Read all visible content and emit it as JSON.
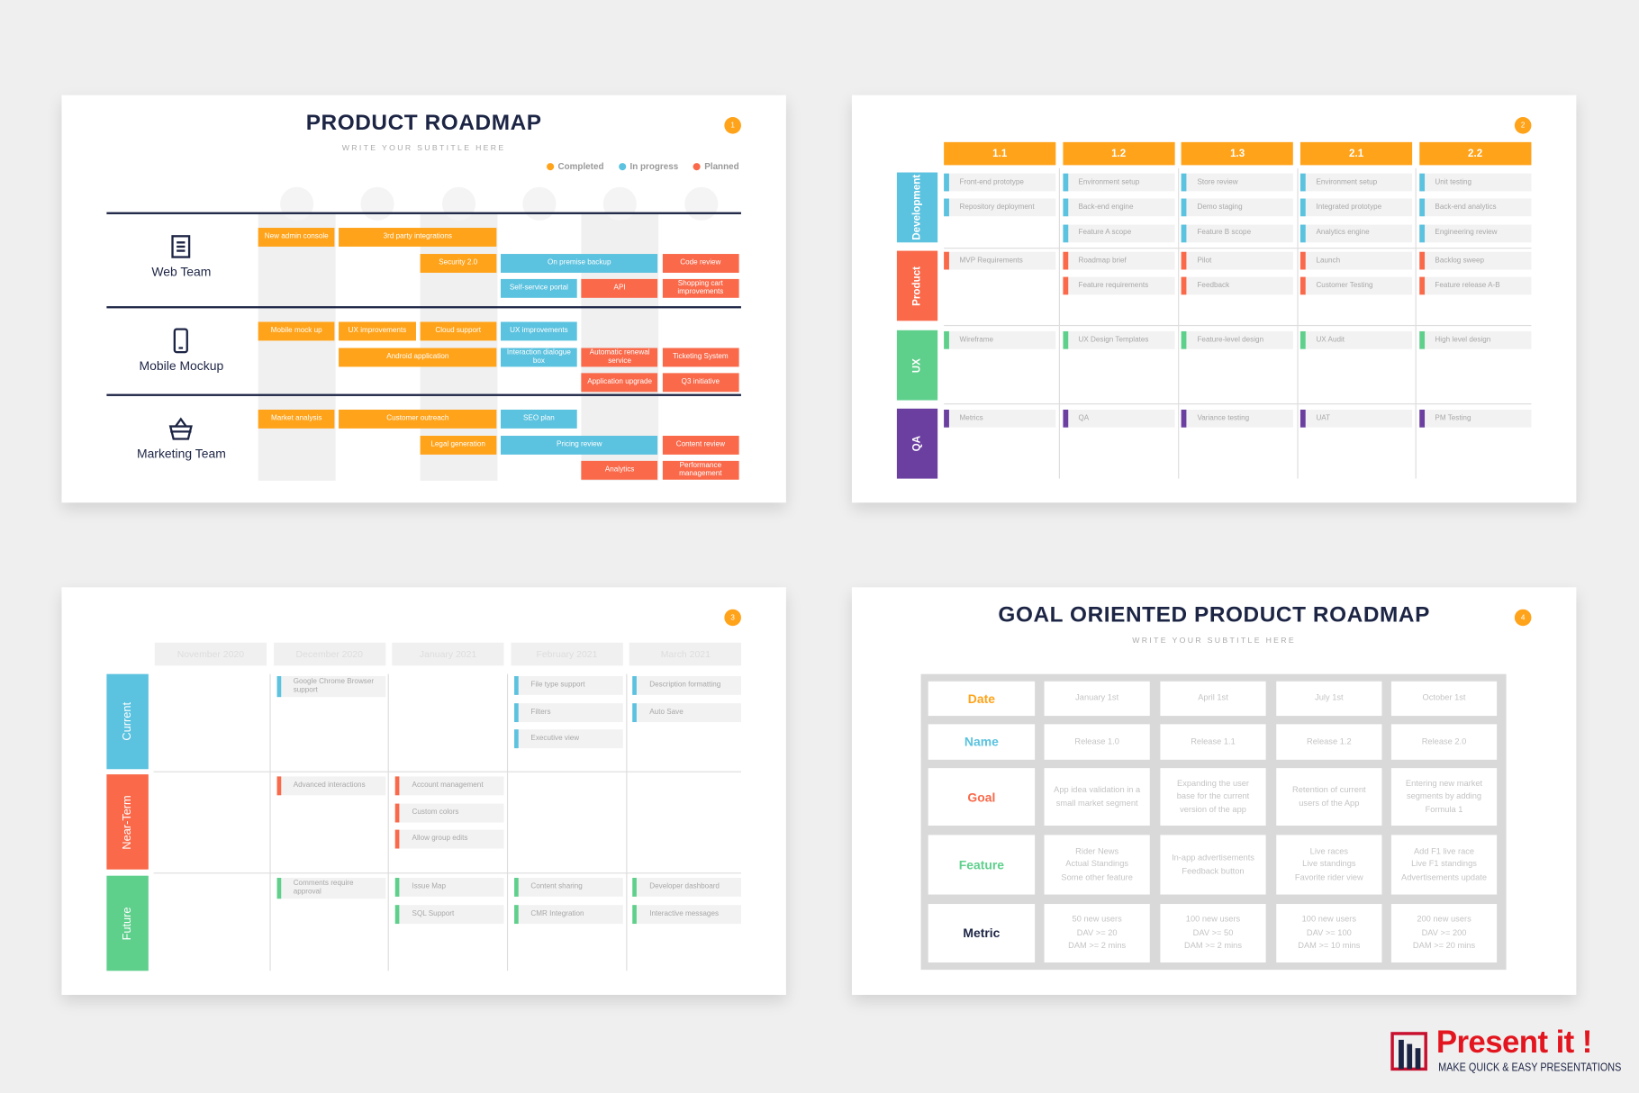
{
  "slides": {
    "roadmap": {
      "title": "PRODUCT ROADMAP",
      "subtitle": "WRITE YOUR SUBTITLE HERE",
      "number": "1",
      "legend": [
        {
          "label": "Completed",
          "color": "#ffa31a"
        },
        {
          "label": "In progress",
          "color": "#5bc2df"
        },
        {
          "label": "Planned",
          "color": "#f9694a"
        }
      ],
      "teams": [
        {
          "name": "Web Team",
          "icon": "document",
          "lanes": [
            [
              {
                "text": "New admin console",
                "color": "#ffa31a"
              },
              {
                "text": "3rd party integrations",
                "color": "#ffa31a",
                "span": 2
              }
            ],
            [
              null,
              null,
              {
                "text": "Security 2.0",
                "color": "#ffa31a"
              },
              {
                "text": "On premise backup",
                "color": "#5bc2df",
                "span": 2
              },
              {
                "text": "Code review",
                "color": "#f9694a"
              }
            ],
            [
              null,
              null,
              null,
              {
                "text": "Self-service portal",
                "color": "#5bc2df"
              },
              {
                "text": "API",
                "color": "#f9694a"
              },
              {
                "text": "Shopping cart improvements",
                "color": "#f9694a"
              }
            ]
          ]
        },
        {
          "name": "Mobile Mockup",
          "icon": "phone",
          "lanes": [
            [
              {
                "text": "Mobile mock up",
                "color": "#ffa31a"
              },
              {
                "text": "UX improvements",
                "color": "#ffa31a"
              },
              {
                "text": "Cloud support",
                "color": "#ffa31a"
              },
              {
                "text": "UX improvements",
                "color": "#5bc2df"
              }
            ],
            [
              null,
              {
                "text": "Android application",
                "color": "#ffa31a",
                "span": 2
              },
              {
                "text": "Interaction dialogue box",
                "color": "#5bc2df"
              },
              {
                "text": "Automatic renewal service",
                "color": "#f9694a"
              },
              {
                "text": "Ticketing System",
                "color": "#f9694a"
              }
            ],
            [
              null,
              null,
              null,
              null,
              {
                "text": "Application upgrade",
                "color": "#f9694a"
              },
              {
                "text": "Q3 initiative",
                "color": "#f9694a"
              }
            ]
          ]
        },
        {
          "name": "Marketing Team",
          "icon": "basket",
          "lanes": [
            [
              {
                "text": "Market analysis",
                "color": "#ffa31a"
              },
              {
                "text": "Customer outreach",
                "color": "#ffa31a",
                "span": 2
              },
              {
                "text": "SEO plan",
                "color": "#5bc2df"
              }
            ],
            [
              null,
              null,
              {
                "text": "Legal generation",
                "color": "#ffa31a"
              },
              {
                "text": "Pricing review",
                "color": "#5bc2df",
                "span": 2
              },
              {
                "text": "Content review",
                "color": "#f9694a"
              }
            ],
            [
              null,
              null,
              null,
              null,
              {
                "text": "Analytics",
                "color": "#f9694a"
              },
              {
                "text": "Performance management",
                "color": "#f9694a"
              }
            ]
          ]
        }
      ]
    },
    "releases": {
      "number": "2",
      "columns": [
        "1.1",
        "1.2",
        "1.3",
        "2.1",
        "2.2"
      ],
      "rows": [
        {
          "name": "Development",
          "color": "#5bc2df",
          "cells": [
            [
              "Front-end prototype",
              "Repository deployment"
            ],
            [
              "Environment setup",
              "Back-end engine",
              "Feature A scope"
            ],
            [
              "Store review",
              "Demo staging",
              "Feature B scope"
            ],
            [
              "Environment setup",
              "Integrated prototype",
              "Analytics engine"
            ],
            [
              "Unit testing",
              "Back-end analytics",
              "Engineering review"
            ]
          ]
        },
        {
          "name": "Product",
          "color": "#f9694a",
          "cells": [
            [
              "MVP Requirements"
            ],
            [
              "Roadmap brief",
              "Feature requirements"
            ],
            [
              "Pilot",
              "Feedback"
            ],
            [
              "Launch",
              "Customer Testing"
            ],
            [
              "Backlog sweep",
              "Feature release A-B"
            ]
          ]
        },
        {
          "name": "UX",
          "color": "#5fd08c",
          "cells": [
            [
              "Wireframe"
            ],
            [
              "UX Design Templates"
            ],
            [
              "Feature-level design"
            ],
            [
              "UX Audit"
            ],
            [
              "High level design"
            ]
          ]
        },
        {
          "name": "QA",
          "color": "#6b3fa0",
          "cells": [
            [
              "Metrics"
            ],
            [
              "QA"
            ],
            [
              "Variance testing"
            ],
            [
              "UAT"
            ],
            [
              "PM Testing"
            ]
          ]
        }
      ]
    },
    "timeline": {
      "number": "3",
      "columns": [
        "November 2020",
        "December 2020",
        "January 2021",
        "February 2021",
        "March 2021"
      ],
      "rows": [
        {
          "name": "Current",
          "color": "#5bc2df",
          "cells": [
            [],
            [
              "Google Chrome Browser support"
            ],
            [],
            [
              "File type support",
              "Filters",
              "Executive view"
            ],
            [
              "Description formatting",
              "Auto Save"
            ]
          ]
        },
        {
          "name": "Near-Term",
          "color": "#f9694a",
          "cells": [
            [],
            [
              "Advanced interactions"
            ],
            [
              "Account management",
              "Custom colors",
              "Allow group edits"
            ],
            [],
            []
          ]
        },
        {
          "name": "Future",
          "color": "#5fd08c",
          "cells": [
            [],
            [
              "Comments require approval"
            ],
            [
              "Issue Map",
              "SQL Support"
            ],
            [
              "Content sharing",
              "CMR Integration"
            ],
            [
              "Developer dashboard",
              "Interactive messages"
            ]
          ]
        }
      ]
    },
    "goals": {
      "title": "GOAL ORIENTED PRODUCT ROADMAP",
      "subtitle": "WRITE YOUR SUBTITLE HERE",
      "number": "4",
      "rows": [
        {
          "label": "Date",
          "color": "#ffa31a",
          "cells": [
            [
              "January 1st"
            ],
            [
              "April 1st"
            ],
            [
              "July 1st"
            ],
            [
              "October 1st"
            ]
          ]
        },
        {
          "label": "Name",
          "color": "#5bc2df",
          "cells": [
            [
              "Release 1.0"
            ],
            [
              "Release 1.1"
            ],
            [
              "Release 1.2"
            ],
            [
              "Release 2.0"
            ]
          ]
        },
        {
          "label": "Goal",
          "color": "#f9694a",
          "cells": [
            [
              "App idea validation in a small market segment"
            ],
            [
              "Expanding the user base for the current version of the app"
            ],
            [
              "Retention of current users of the App"
            ],
            [
              "Entering new market segments by adding Formula 1"
            ]
          ]
        },
        {
          "label": "Feature",
          "color": "#5fd08c",
          "cells": [
            [
              "Rider News",
              "Actual Standings",
              "Some other feature"
            ],
            [
              "In-app advertisements",
              "Feedback button"
            ],
            [
              "Live races",
              "Live standings",
              "Favorite rider view"
            ],
            [
              "Add F1 live race",
              "Live F1 standings",
              "Advertisements update"
            ]
          ]
        },
        {
          "label": "Metric",
          "color": "#1d2545",
          "cells": [
            [
              "50 new users",
              "DAV >= 20",
              "DAM >= 2 mins"
            ],
            [
              "100 new users",
              "DAV >= 50",
              "DAM >= 2 mins"
            ],
            [
              "100 new users",
              "DAV >= 100",
              "DAM >= 10 mins"
            ],
            [
              "200 new users",
              "DAV >= 200",
              "DAM >= 20 mins"
            ]
          ]
        }
      ]
    }
  },
  "logo": {
    "name": "Present it !",
    "tagline": "MAKE QUICK & EASY PRESENTATIONS"
  }
}
